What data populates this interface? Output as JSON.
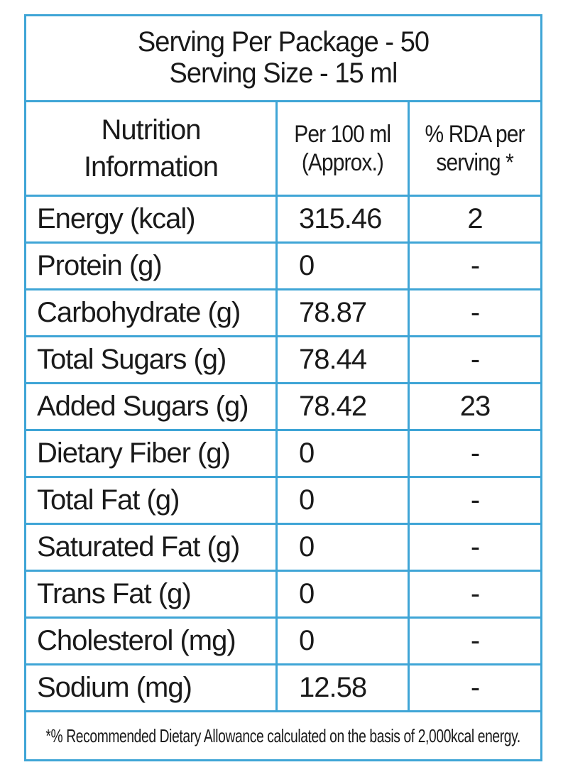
{
  "serving": {
    "per_package": "Serving Per Package - 50",
    "size": "Serving Size - 15 ml"
  },
  "header": {
    "col1_line1": "Nutrition",
    "col1_line2": "Information",
    "col2_line1": "Per 100 ml",
    "col2_line2": "(Approx.)",
    "col3_line1": "% RDA per",
    "col3_line2": "serving *"
  },
  "rows": [
    {
      "name": "Energy (kcal)",
      "per100": "315.46",
      "rda": "2"
    },
    {
      "name": "Protein (g)",
      "per100": "0",
      "rda": "-"
    },
    {
      "name": "Carbohydrate (g)",
      "per100": "78.87",
      "rda": "-"
    },
    {
      "name": "Total Sugars (g)",
      "per100": "78.44",
      "rda": "-"
    },
    {
      "name": "Added Sugars (g)",
      "per100": "78.42",
      "rda": "23"
    },
    {
      "name": "Dietary Fiber (g)",
      "per100": "0",
      "rda": "-"
    },
    {
      "name": "Total Fat (g)",
      "per100": "0",
      "rda": "-"
    },
    {
      "name": "Saturated Fat (g)",
      "per100": "0",
      "rda": "-"
    },
    {
      "name": "Trans Fat (g)",
      "per100": "0",
      "rda": "-"
    },
    {
      "name": "Cholesterol (mg)",
      "per100": "0",
      "rda": "-"
    },
    {
      "name": "Sodium (mg)",
      "per100": "12.58",
      "rda": "-"
    }
  ],
  "footnote": "*% Recommended Dietary Allowance calculated on the basis of 2,000kcal energy.",
  "colors": {
    "border": "#3fa5d6",
    "text": "#1a1a1a"
  }
}
